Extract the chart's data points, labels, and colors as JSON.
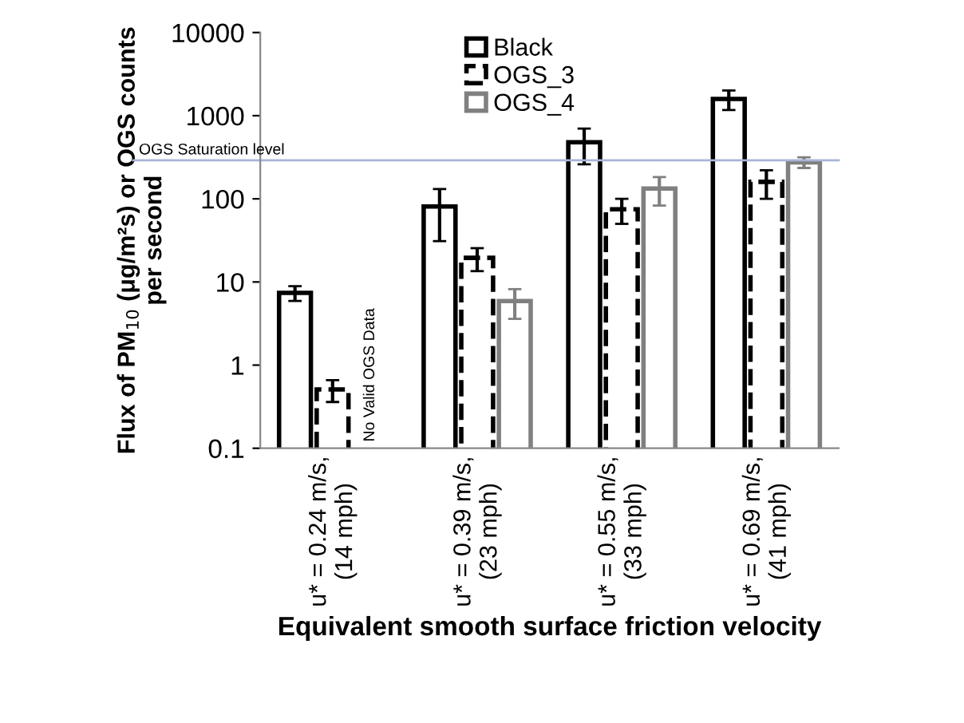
{
  "chart_data": {
    "type": "bar",
    "xlabel": "Equivalent smooth surface friction velocity",
    "ylabel": "Flux of PM$_{10}$ (μg/m²s) or OGS counts\nper second",
    "categories": [
      "u* = 0.24 m/s,\n(14 mph)",
      "u* = 0.39 m/s,\n(23 mph)",
      "u* = 0.55 m/s,\n(33 mph)",
      "u* = 0.69 m/s,\n(41 mph)"
    ],
    "series": [
      {
        "name": "Black",
        "color": "#000000",
        "line_style": "solid",
        "values": [
          7.4,
          81,
          480,
          1590
        ],
        "errors": [
          1.5,
          50,
          220,
          420
        ]
      },
      {
        "name": "OGS_3",
        "color": "#000000",
        "line_style": "dashed",
        "values": [
          0.51,
          19.5,
          75,
          160
        ],
        "errors": [
          0.15,
          6,
          25,
          60
        ]
      },
      {
        "name": "OGS_4",
        "color": "#808080",
        "line_style": "solid",
        "values": [
          null,
          5.9,
          133,
          275
        ],
        "errors": [
          null,
          2.3,
          50,
          40
        ]
      }
    ],
    "log": "y",
    "ylim": [
      0.1,
      10000
    ],
    "yticks": [
      0.1,
      1,
      10,
      100,
      1000,
      10000
    ],
    "ref_lines": [
      {
        "axis": "y",
        "value": 290,
        "label": "OGS Saturation level",
        "color": "#a8b4d8"
      }
    ],
    "annotations": [
      "No Valid OGS Data"
    ],
    "legend": "top",
    "grid": false
  }
}
